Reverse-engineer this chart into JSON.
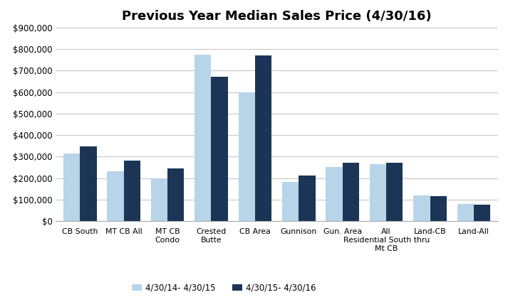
{
  "title": "Previous Year Median Sales Price (4/30/16)",
  "categories": [
    "CB South",
    "MT CB All",
    "MT CB\nCondo",
    "Crested\nButte",
    "CB Area",
    "Gunnison",
    "Gun. Area",
    "All\nResidential South thru\nMt CB",
    "Land-CB",
    "Land-All"
  ],
  "series1_label": "4/30/14- 4/30/15",
  "series2_label": "4/30/15- 4/30/16",
  "series1_values": [
    315000,
    230000,
    200000,
    775000,
    600000,
    182000,
    252000,
    265000,
    120000,
    80000
  ],
  "series2_values": [
    347000,
    280000,
    245000,
    672000,
    772000,
    212000,
    270000,
    272000,
    115000,
    77000
  ],
  "color1": "#b8d4e8",
  "color2": "#1c3557",
  "ylim": [
    0,
    900000
  ],
  "yticks": [
    0,
    100000,
    200000,
    300000,
    400000,
    500000,
    600000,
    700000,
    800000,
    900000
  ],
  "background_color": "#ffffff",
  "grid_color": "#c8c8c8"
}
